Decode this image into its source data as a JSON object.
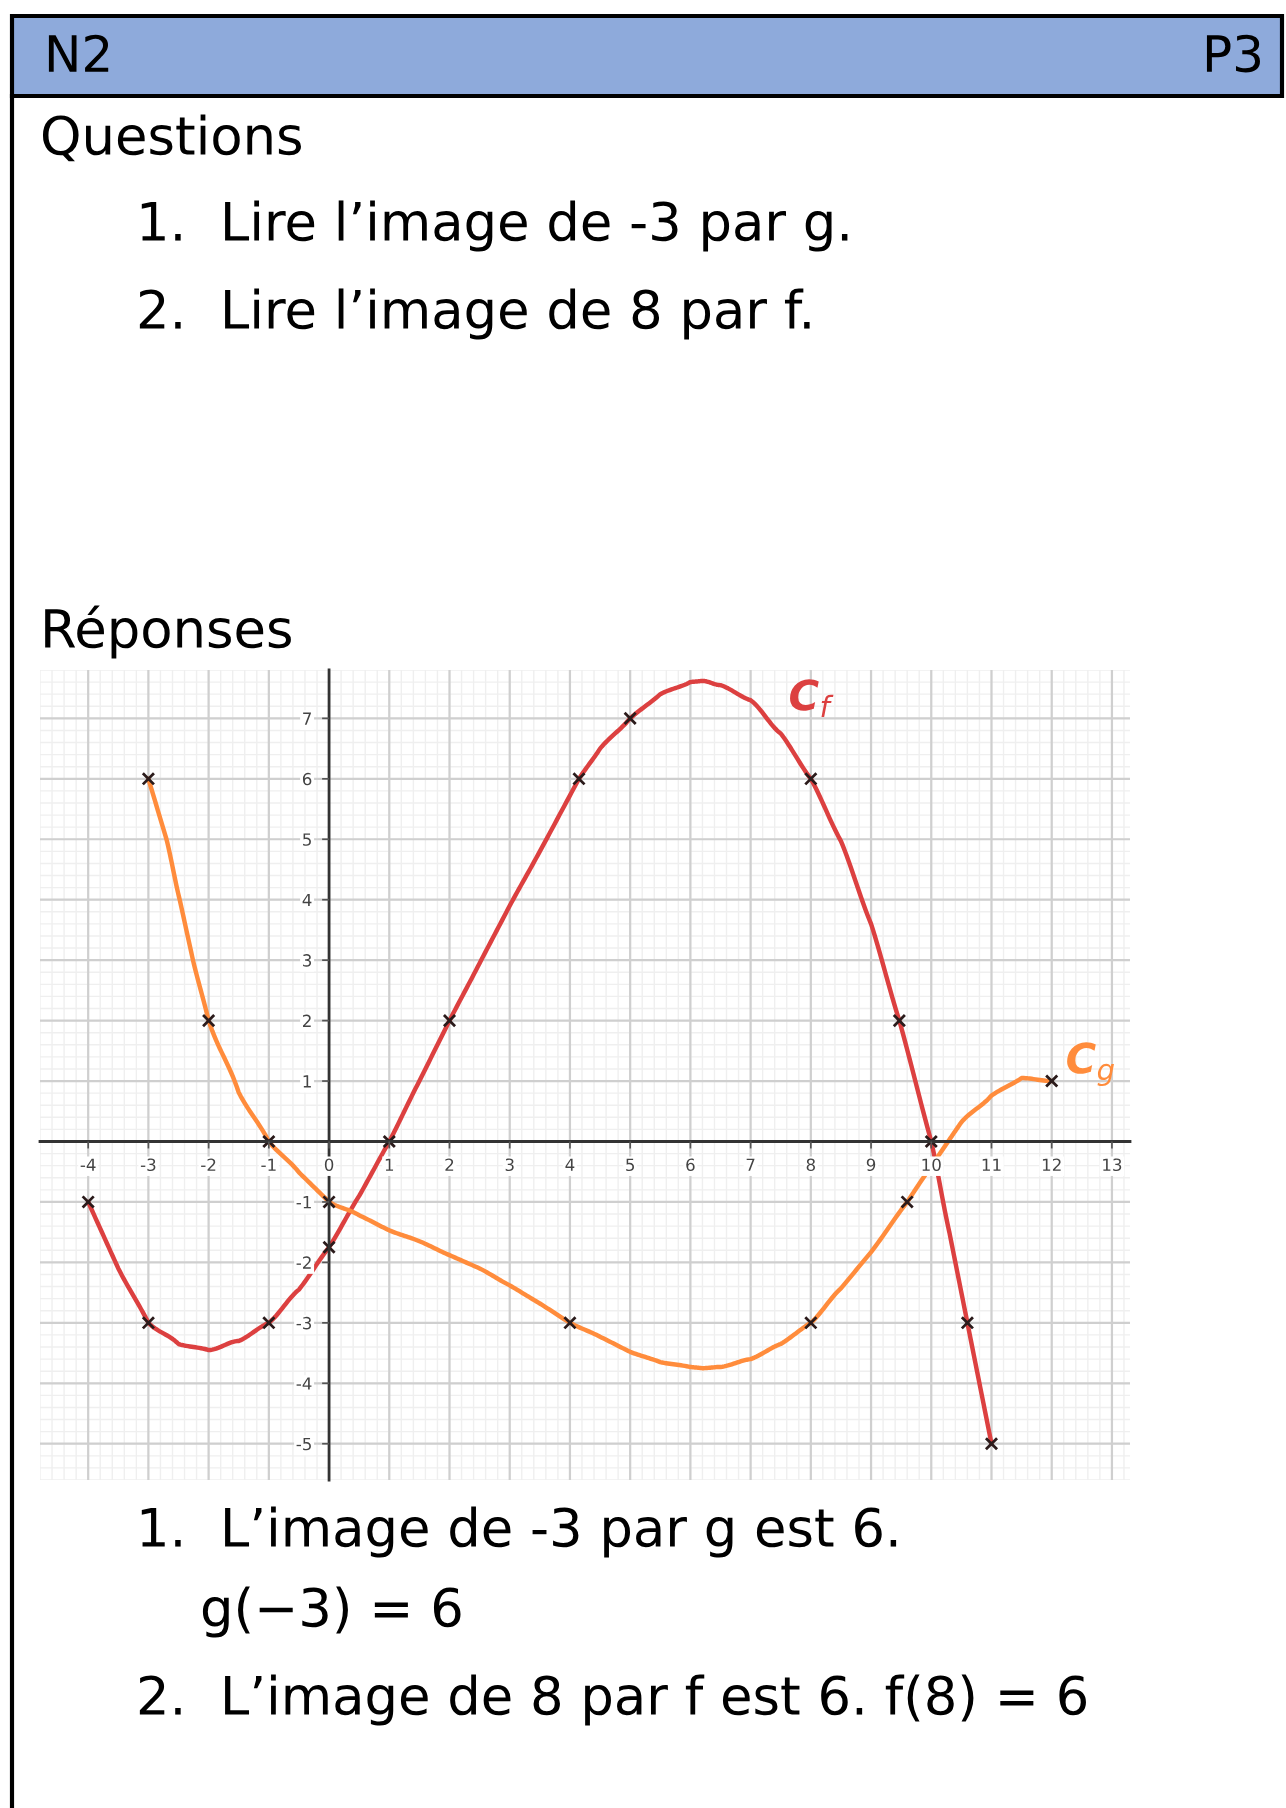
{
  "chart_data": {
    "type": "line",
    "title": "N2",
    "annotations": [
      "P3",
      "Questions",
      "1.  Lire l’image de -3 par g.",
      "2.  Lire l’image de 8 par f.",
      "Réponses",
      "1.  L’image de -3 par g est 6.",
      "g(−3) = 6",
      "2.  L’image de 8 par f est 6. f(8) = 6"
    ],
    "xlim": [
      -4.8,
      13.3
    ],
    "ylim": [
      -5.6,
      7.8
    ],
    "xticks": [
      -4,
      -3,
      -2,
      -1,
      0,
      1,
      2,
      3,
      4,
      5,
      6,
      7,
      8,
      9,
      10,
      11,
      12,
      13
    ],
    "yticks": [
      -5,
      -4,
      -3,
      -2,
      -1,
      1,
      2,
      3,
      4,
      5,
      6,
      7
    ],
    "grid": true,
    "series": [
      {
        "name": "C$_{f}$",
        "color": "#dc4040",
        "marker": "none",
        "x": [
          -4,
          -3.5,
          -3,
          -2.5,
          -2,
          -1.5,
          -1,
          -0.5,
          0,
          0.5,
          1,
          1.5,
          2,
          2.5,
          3,
          3.5,
          4.15,
          4.5,
          5,
          5.5,
          6,
          6.2,
          6.5,
          7,
          7.5,
          8,
          8.5,
          9,
          9.47,
          10,
          10.3,
          10.6,
          11
        ],
        "values": [
          -1,
          -2.1,
          -3,
          -3.35,
          -3.45,
          -3.3,
          -3,
          -2.45,
          -1.75,
          -0.9,
          0,
          1,
          2,
          2.95,
          3.9,
          4.8,
          6,
          6.5,
          7,
          7.4,
          7.6,
          7.62,
          7.55,
          7.3,
          6.75,
          6,
          4.97,
          3.6,
          2,
          0,
          -1.5,
          -3,
          -5
        ]
      },
      {
        "type": "scatter",
        "color": "#2b1b1b",
        "marker": "cross",
        "x": [
          -4,
          -3,
          -1,
          0,
          1,
          2,
          4.15,
          5,
          8,
          9.47,
          10,
          10.6,
          11
        ],
        "values": [
          -1,
          -3,
          -3,
          -1.75,
          0,
          2,
          6,
          7,
          6,
          2,
          0,
          -3,
          -5
        ]
      },
      {
        "name": "C$_{g}$",
        "color": "#ff8c3c",
        "marker": "none",
        "x": [
          -3,
          -2.7,
          -2.48,
          -2.26,
          -2,
          -1.5,
          -1,
          -0.5,
          0,
          0.5,
          1,
          1.5,
          2,
          2.5,
          3,
          3.5,
          4,
          4.5,
          5,
          5.5,
          6,
          6.2,
          6.5,
          7,
          7.5,
          8,
          8.5,
          9,
          9.6,
          9.8,
          10.3,
          10.5,
          11,
          11.5,
          12
        ],
        "values": [
          6,
          5,
          4,
          3,
          2,
          0.81,
          0,
          -0.51,
          -1,
          -1.22,
          -1.47,
          -1.65,
          -1.88,
          -2.1,
          -2.38,
          -2.68,
          -3,
          -3.23,
          -3.48,
          -3.65,
          -3.73,
          -3.75,
          -3.73,
          -3.6,
          -3.35,
          -3,
          -2.43,
          -1.83,
          -1,
          -0.7,
          0.03,
          0.32,
          0.76,
          1.05,
          1
        ]
      },
      {
        "type": "scatter",
        "color": "#2b1b1b",
        "marker": "cross",
        "x": [
          -3,
          -2,
          -1,
          0,
          4,
          8,
          9.6,
          12
        ],
        "values": [
          6,
          2,
          0,
          -1,
          -3,
          -3,
          -1,
          1
        ]
      }
    ]
  }
}
